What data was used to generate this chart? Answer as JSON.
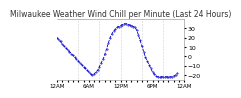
{
  "title": "Milwaukee Weather Wind Chill per Minute (Last 24 Hours)",
  "title_fontsize": 5.5,
  "line_color": "#0000cc",
  "background_color": "#ffffff",
  "plot_bg_color": "#ffffff",
  "ylim": [
    -25,
    40
  ],
  "yticks": [
    -20,
    -10,
    0,
    10,
    20,
    30
  ],
  "ylabel_fontsize": 4.5,
  "xlabel_fontsize": 4.0,
  "grid_color": "#aaaaaa",
  "y_values": [
    20,
    19,
    18,
    17,
    16,
    14,
    13,
    12,
    11,
    10,
    9,
    8,
    7,
    6,
    5,
    4,
    3,
    2,
    1,
    0,
    -1,
    -2,
    -3,
    -4,
    -5,
    -6,
    -7,
    -8,
    -9,
    -10,
    -11,
    -12,
    -13,
    -14,
    -15,
    -16,
    -17,
    -18,
    -19,
    -20,
    -20,
    -20,
    -19,
    -18,
    -17,
    -16,
    -15,
    -13,
    -11,
    -9,
    -7,
    -5,
    -3,
    -1,
    2,
    5,
    8,
    11,
    14,
    17,
    20,
    22,
    24,
    26,
    27,
    28,
    29,
    30,
    31,
    32,
    32,
    33,
    33,
    34,
    34,
    35,
    35,
    35,
    35,
    35,
    34,
    34,
    34,
    33,
    33,
    33,
    32,
    32,
    31,
    30,
    28,
    26,
    23,
    20,
    17,
    14,
    11,
    8,
    5,
    2,
    -1,
    -3,
    -5,
    -7,
    -9,
    -11,
    -13,
    -15,
    -17,
    -18,
    -19,
    -20,
    -21,
    -22,
    -22,
    -22,
    -22,
    -22,
    -22,
    -22,
    -22,
    -22,
    -22,
    -22,
    -22,
    -22,
    -22,
    -22,
    -22,
    -22,
    -22,
    -22,
    -21,
    -21,
    -20,
    -19,
    -18
  ],
  "vlines": [
    24,
    48,
    72,
    96,
    120
  ],
  "xtick_labels": [
    "12AM",
    "",
    "",
    "",
    "",
    "",
    "6AM",
    "",
    "",
    "",
    "",
    "",
    "12PM",
    "",
    "",
    "",
    "",
    "",
    "6PM",
    "",
    "",
    "",
    "",
    "",
    "12AM"
  ],
  "xtick_positions": [
    0,
    6,
    12,
    18,
    24,
    30,
    36,
    42,
    48,
    54,
    60,
    66,
    72,
    78,
    84,
    90,
    96,
    102,
    108,
    114,
    120,
    126,
    132,
    138,
    144
  ]
}
